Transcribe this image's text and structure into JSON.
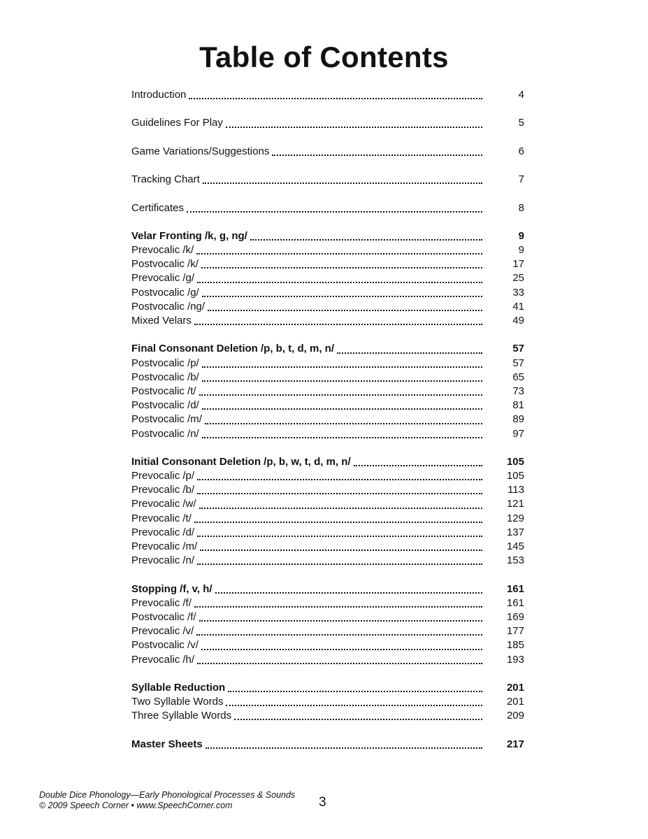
{
  "title": "Table of Contents",
  "toc": [
    {
      "entries": [
        {
          "label": "Introduction",
          "page": "4",
          "bold": false
        }
      ]
    },
    {
      "entries": [
        {
          "label": "Guidelines For Play",
          "page": "5",
          "bold": false
        }
      ]
    },
    {
      "entries": [
        {
          "label": "Game Variations/Suggestions",
          "page": "6",
          "bold": false
        }
      ]
    },
    {
      "entries": [
        {
          "label": "Tracking Chart",
          "page": "7",
          "bold": false
        }
      ]
    },
    {
      "entries": [
        {
          "label": "Certificates",
          "page": "8",
          "bold": false
        }
      ]
    },
    {
      "entries": [
        {
          "label": "Velar Fronting /k, g, ng/",
          "page": "9",
          "bold": true
        },
        {
          "label": "Prevocalic /k/",
          "page": "9",
          "bold": false
        },
        {
          "label": "Postvocalic /k/",
          "page": "17",
          "bold": false
        },
        {
          "label": "Prevocalic /g/",
          "page": "25",
          "bold": false
        },
        {
          "label": "Postvocalic /g/",
          "page": "33",
          "bold": false
        },
        {
          "label": "Postvocalic /ng/",
          "page": "41",
          "bold": false
        },
        {
          "label": "Mixed Velars",
          "page": "49",
          "bold": false
        }
      ]
    },
    {
      "entries": [
        {
          "label": "Final Consonant Deletion /p, b, t, d, m, n/",
          "page": "57",
          "bold": true
        },
        {
          "label": "Postvocalic /p/",
          "page": "57",
          "bold": false
        },
        {
          "label": "Postvocalic /b/",
          "page": "65",
          "bold": false
        },
        {
          "label": "Postvocalic /t/",
          "page": "73",
          "bold": false
        },
        {
          "label": "Postvocalic /d/",
          "page": "81",
          "bold": false
        },
        {
          "label": "Postvocalic /m/",
          "page": "89",
          "bold": false
        },
        {
          "label": "Postvocalic /n/",
          "page": "97",
          "bold": false
        }
      ]
    },
    {
      "entries": [
        {
          "label": "Initial Consonant Deletion /p, b, w, t, d, m, n/",
          "page": "105",
          "bold": true
        },
        {
          "label": "Prevocalic /p/",
          "page": "105",
          "bold": false
        },
        {
          "label": "Prevocalic /b/",
          "page": "113",
          "bold": false
        },
        {
          "label": "Prevocalic /w/",
          "page": "121",
          "bold": false
        },
        {
          "label": "Prevocalic /t/",
          "page": "129",
          "bold": false
        },
        {
          "label": "Prevocalic /d/",
          "page": "137",
          "bold": false
        },
        {
          "label": "Prevocalic /m/",
          "page": "145",
          "bold": false
        },
        {
          "label": "Prevocalic /n/",
          "page": "153",
          "bold": false
        }
      ]
    },
    {
      "entries": [
        {
          "label": "Stopping /f, v, h/",
          "page": "161",
          "bold": true
        },
        {
          "label": "Prevocalic /f/",
          "page": "161",
          "bold": false
        },
        {
          "label": "Postvocalic /f/",
          "page": "169",
          "bold": false
        },
        {
          "label": "Prevocalic /v/",
          "page": "177",
          "bold": false
        },
        {
          "label": "Postvocalic /v/",
          "page": "185",
          "bold": false
        },
        {
          "label": "Prevocalic /h/",
          "page": "193",
          "bold": false
        }
      ]
    },
    {
      "entries": [
        {
          "label": "Syllable Reduction",
          "page": "201",
          "bold": true
        },
        {
          "label": "Two Syllable Words",
          "page": "201",
          "bold": false
        },
        {
          "label": "Three Syllable Words",
          "page": "209",
          "bold": false
        }
      ]
    },
    {
      "entries": [
        {
          "label": "Master Sheets",
          "page": "217",
          "bold": true
        }
      ]
    }
  ],
  "footer": {
    "line1": "Double Dice Phonology—Early Phonological Processes & Sounds",
    "line2": "© 2009 Speech Corner • www.SpeechCorner.com",
    "page_number": "3"
  }
}
